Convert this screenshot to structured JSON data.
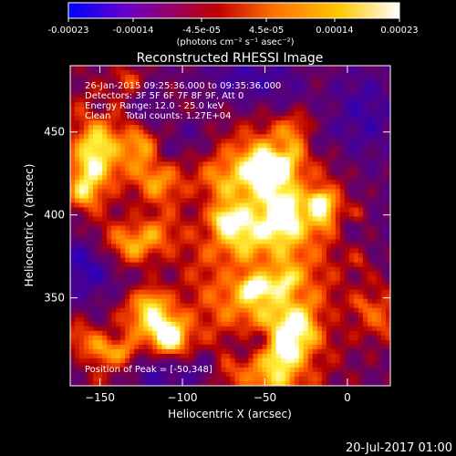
{
  "colorbar": {
    "tick_labels": [
      "-0.00023",
      "-0.00014",
      "-4.5e-05",
      "4.5e-05",
      "0.00014",
      "0.00023"
    ],
    "tick_values": [
      -0.00023,
      -0.00014,
      -4.5e-05,
      4.5e-05,
      0.00014,
      0.00023
    ],
    "range": [
      -0.00023,
      0.00023
    ],
    "unit_label": "(photons cm⁻² s⁻¹ asec⁻²)",
    "colors": [
      "#0000ff",
      "#6a00c8",
      "#c00000",
      "#ff7000",
      "#ffc800",
      "#ffffff"
    ]
  },
  "chart_data": {
    "type": "heatmap",
    "title": "Reconstructed RHESSI Image",
    "xlabel": "Heliocentric X (arcsec)",
    "ylabel": "Heliocentric Y (arcsec)",
    "xlim": [
      -168,
      26
    ],
    "ylim": [
      297,
      490
    ],
    "x_ticks": [
      -150,
      -100,
      -50,
      0
    ],
    "y_ticks": [
      350,
      400,
      450
    ],
    "peak": {
      "x": -50,
      "y": 348
    },
    "annotations": {
      "time_range": "26-Jan-2015 09:25:36.000 to 09:35:36.000",
      "detectors": "Detectors: 3F 5F 6F 7F 8F 9F, Att 0",
      "energy_range": "Energy Range: 12.0 - 25.0 keV",
      "method_counts": "Clean     Total counts: 1.27E+04",
      "peak_label": "Position of Peak = [-50,348]"
    }
  },
  "footer": {
    "timestamp": "20-Jul-2017 01:00"
  }
}
